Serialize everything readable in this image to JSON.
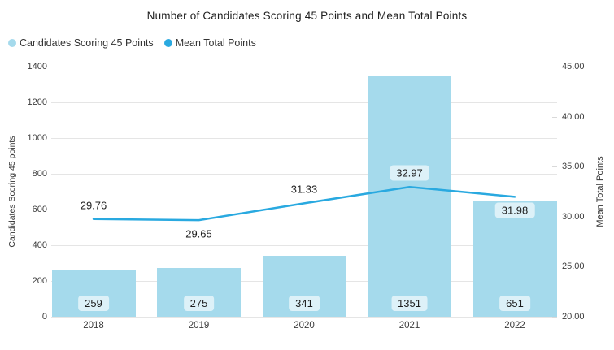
{
  "chart_data": {
    "type": "bar",
    "subtype": "combo-bar-line-dual-axis",
    "title": "Number of Candidates Scoring 45 Points and Mean Total Points",
    "categories": [
      "2018",
      "2019",
      "2020",
      "2021",
      "2022"
    ],
    "series": [
      {
        "name": "Candidates Scoring 45 Points",
        "type": "bar",
        "axis": "left",
        "color": "#A5DAEC",
        "values": [
          259,
          275,
          341,
          1351,
          651
        ]
      },
      {
        "name": "Mean Total Points",
        "type": "line",
        "axis": "right",
        "color": "#29A9E0",
        "values": [
          29.76,
          29.65,
          31.33,
          32.97,
          31.98
        ],
        "value_label_positions": [
          "above",
          "below",
          "above",
          "above",
          "below"
        ]
      }
    ],
    "ylabel_left": "Candidates Scoring 45 points",
    "ylabel_right": "Mean Total Points",
    "axis_left": {
      "min": 0,
      "max": 1400,
      "tick_step": 200,
      "tick_labels": [
        "1400",
        "1200",
        "1000",
        "800",
        "600",
        "400",
        "200",
        "0"
      ]
    },
    "axis_right": {
      "min": 20,
      "max": 45,
      "tick_step": 5,
      "tick_labels": [
        "45.00",
        "40.00",
        "35.00",
        "30.00",
        "25.00",
        "20.00"
      ]
    },
    "grid": true,
    "legend_position": "top-left",
    "colors": {
      "bar": "#A5DAEC",
      "line": "#29A9E0",
      "grid": "#E5E5E5",
      "tick_text": "#3C3C3C",
      "label_text": "#1E1E1E",
      "label_pill_bg": "rgba(255,255,255,0.62)"
    }
  }
}
